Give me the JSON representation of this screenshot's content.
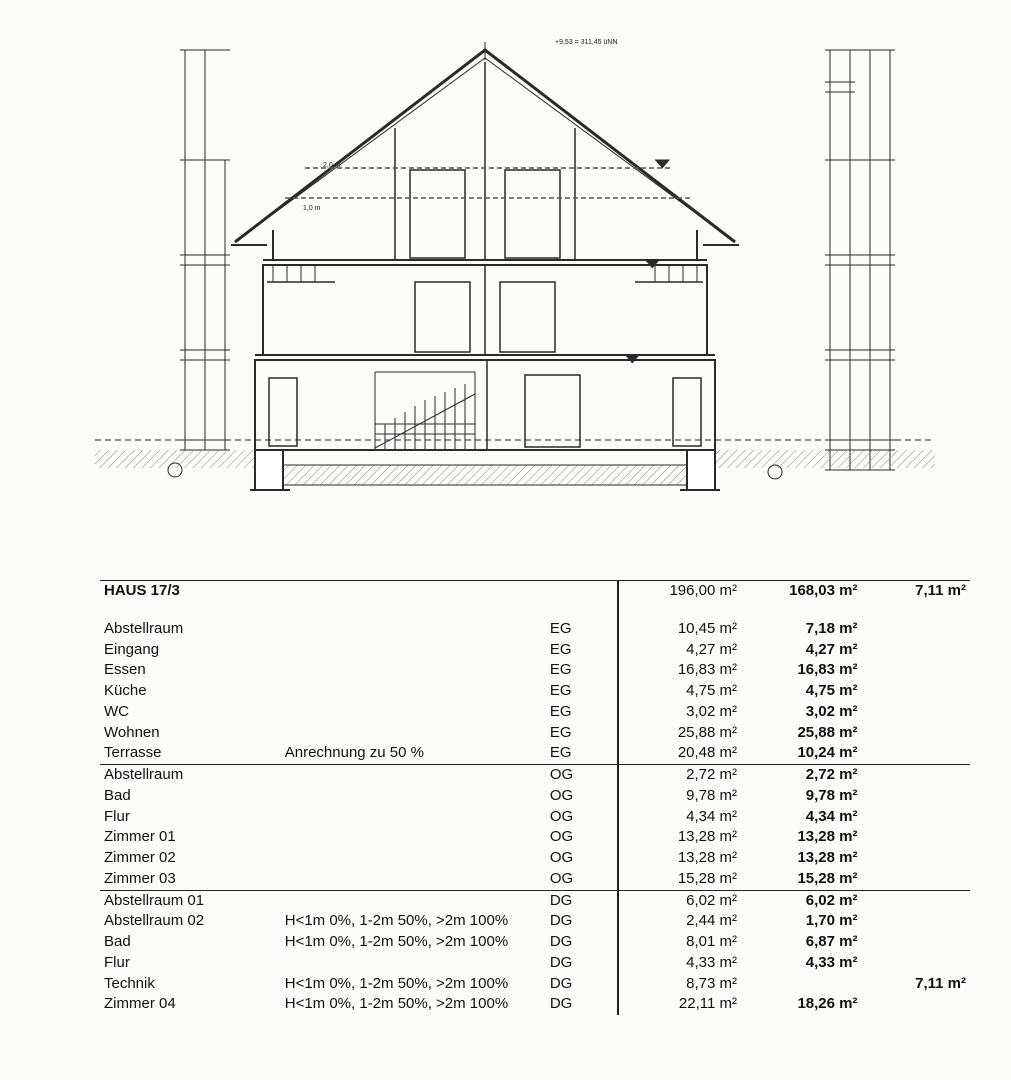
{
  "drawing": {
    "label_2m": "2,0 m",
    "label_1m": "1,0 m",
    "top_note": "+9,53 = 311,45 üNN",
    "stroke": "#2a2a2a",
    "stroke_thin": "#555",
    "hatch": "#777",
    "bg": "#fbfbfa"
  },
  "table": {
    "title": "HAUS 17/3",
    "header_a": "196,00 m²",
    "header_b": "168,03 m²",
    "header_c": "7,11 m²",
    "note_anrech": "Anrechnung zu 50 %",
    "note_height": "H<1m 0%, 1-2m 50%, >2m 100%",
    "rows": [
      {
        "name": "Abstellraum",
        "note": "",
        "floor": "EG",
        "a": "10,45 m²",
        "b": "7,18 m²",
        "c": "",
        "section": false
      },
      {
        "name": "Eingang",
        "note": "",
        "floor": "EG",
        "a": "4,27 m²",
        "b": "4,27 m²",
        "c": "",
        "section": false
      },
      {
        "name": "Essen",
        "note": "",
        "floor": "EG",
        "a": "16,83 m²",
        "b": "16,83 m²",
        "c": "",
        "section": false
      },
      {
        "name": "Küche",
        "note": "",
        "floor": "EG",
        "a": "4,75 m²",
        "b": "4,75 m²",
        "c": "",
        "section": false
      },
      {
        "name": "WC",
        "note": "",
        "floor": "EG",
        "a": "3,02 m²",
        "b": "3,02 m²",
        "c": "",
        "section": false
      },
      {
        "name": "Wohnen",
        "note": "",
        "floor": "EG",
        "a": "25,88 m²",
        "b": "25,88 m²",
        "c": "",
        "section": false
      },
      {
        "name": "Terrasse",
        "note": "anrech",
        "floor": "EG",
        "a": "20,48 m²",
        "b": "10,24 m²",
        "c": "",
        "section": false
      },
      {
        "name": "Abstellraum",
        "note": "",
        "floor": "OG",
        "a": "2,72 m²",
        "b": "2,72 m²",
        "c": "",
        "section": true
      },
      {
        "name": "Bad",
        "note": "",
        "floor": "OG",
        "a": "9,78 m²",
        "b": "9,78 m²",
        "c": "",
        "section": false
      },
      {
        "name": "Flur",
        "note": "",
        "floor": "OG",
        "a": "4,34 m²",
        "b": "4,34 m²",
        "c": "",
        "section": false
      },
      {
        "name": "Zimmer 01",
        "note": "",
        "floor": "OG",
        "a": "13,28 m²",
        "b": "13,28 m²",
        "c": "",
        "section": false
      },
      {
        "name": "Zimmer 02",
        "note": "",
        "floor": "OG",
        "a": "13,28 m²",
        "b": "13,28 m²",
        "c": "",
        "section": false
      },
      {
        "name": "Zimmer 03",
        "note": "",
        "floor": "OG",
        "a": "15,28 m²",
        "b": "15,28 m²",
        "c": "",
        "section": false
      },
      {
        "name": "Abstellraum 01",
        "note": "",
        "floor": "DG",
        "a": "6,02 m²",
        "b": "6,02 m²",
        "c": "",
        "section": true
      },
      {
        "name": "Abstellraum 02",
        "note": "height",
        "floor": "DG",
        "a": "2,44 m²",
        "b": "1,70 m²",
        "c": "",
        "section": false
      },
      {
        "name": "Bad",
        "note": "height",
        "floor": "DG",
        "a": "8,01 m²",
        "b": "6,87 m²",
        "c": "",
        "section": false
      },
      {
        "name": "Flur",
        "note": "",
        "floor": "DG",
        "a": "4,33 m²",
        "b": "4,33 m²",
        "c": "",
        "section": false
      },
      {
        "name": "Technik",
        "note": "height",
        "floor": "DG",
        "a": "8,73 m²",
        "b": "",
        "c": "7,11 m²",
        "section": false
      },
      {
        "name": "Zimmer 04",
        "note": "height",
        "floor": "DG",
        "a": "22,11 m²",
        "b": "18,26 m²",
        "c": "",
        "section": false
      }
    ]
  }
}
